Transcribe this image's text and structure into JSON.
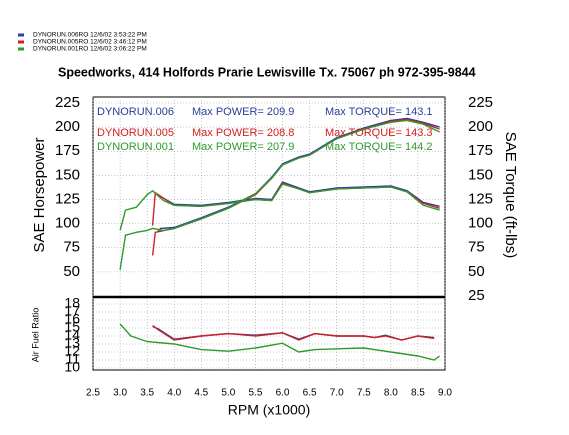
{
  "title": "Speedworks, 414 Holfords Prarie Lewisville Tx. 75067  ph 972-395-9844",
  "chart_data": [
    {
      "type": "line",
      "ylabel": "SAE Horsepower",
      "y2label": "SAE Torque (ft-lbs)",
      "xlim": [
        2.5,
        9.0
      ],
      "ylim": [
        25,
        225
      ],
      "yticks": [
        50,
        75,
        100,
        125,
        150,
        175,
        200,
        225
      ],
      "y2lim": [
        25,
        225
      ],
      "y2ticks": [
        25,
        50,
        75,
        100,
        125,
        150,
        175,
        200,
        225
      ],
      "grid": true,
      "series": [
        {
          "name": "DYNORUN.006RO 12/6/02 3:53:22 PM",
          "color": "#2a3f9e",
          "x": [
            3.7,
            3.75,
            4.0,
            4.5,
            5.0,
            5.5,
            5.8,
            6.0,
            6.3,
            6.5,
            7.0,
            7.5,
            8.0,
            8.3,
            8.6,
            8.9
          ],
          "values": [
            92,
            95,
            96,
            106,
            117,
            131,
            148,
            162,
            169,
            172,
            189,
            199,
            207,
            209,
            205,
            200
          ],
          "torque": [
            130,
            128,
            120,
            119,
            122,
            126,
            125,
            143,
            137,
            133,
            137,
            138,
            139,
            134,
            122,
            118
          ]
        },
        {
          "name": "DYNORUN.005RO 12/6/02 3:46:12 PM",
          "color": "#d02020",
          "x": [
            3.6,
            3.65,
            4.0,
            4.5,
            5.0,
            5.5,
            5.8,
            6.0,
            6.3,
            6.5,
            7.0,
            7.5,
            8.0,
            8.3,
            8.6,
            8.9
          ],
          "values": [
            67,
            91,
            95,
            105,
            116,
            130,
            147,
            161,
            168,
            171,
            188,
            198,
            206,
            208,
            204,
            198
          ],
          "torque": [
            98,
            132,
            119,
            118,
            121,
            125,
            124,
            142,
            136,
            132,
            136,
            137,
            138,
            133,
            121,
            116
          ]
        },
        {
          "name": "DYNORUN.001RO 12/6/02 3:06:22 PM",
          "color": "#2e9a2e",
          "x": [
            3.0,
            3.1,
            3.3,
            3.5,
            3.6,
            3.8,
            4.0,
            4.5,
            5.0,
            5.5,
            5.8,
            6.0,
            6.3,
            6.5,
            7.0,
            7.5,
            8.0,
            8.3,
            8.6,
            8.9
          ],
          "values": [
            52,
            88,
            91,
            93,
            95,
            93,
            95,
            105,
            116,
            131,
            147,
            161,
            168,
            171,
            188,
            198,
            205,
            207,
            203,
            195
          ],
          "torque": [
            93,
            114,
            117,
            130,
            134,
            124,
            119,
            118,
            121,
            125,
            124,
            141,
            136,
            132,
            136,
            137,
            138,
            133,
            119,
            114
          ]
        }
      ],
      "annotations": [
        {
          "color": "#2a3f9e",
          "texts": [
            "DYNORUN.006",
            "Max POWER= 209.9",
            "Max TORQUE= 143.1"
          ]
        },
        {
          "color": "#d02020",
          "texts": [
            "DYNORUN.005",
            "Max POWER= 208.8",
            "Max TORQUE= 143.3"
          ]
        },
        {
          "color": "#2e9a2e",
          "texts": [
            "DYNORUN.001",
            "Max POWER= 207.9",
            "Max TORQUE= 144.2"
          ]
        }
      ]
    },
    {
      "type": "line",
      "ylabel": "Air Fuel Ratio",
      "xlabel": "RPM (x1000)",
      "xlim": [
        2.5,
        9.0
      ],
      "ylim": [
        10,
        18
      ],
      "yticks": [
        10,
        11,
        12,
        13,
        14,
        15,
        16,
        17,
        18
      ],
      "xticks": [
        {
          "value": 2.5,
          "label": "2.5"
        },
        {
          "value": 3,
          "label": "3.0"
        },
        {
          "value": 3.5,
          "label": "3.5"
        },
        {
          "value": 4,
          "label": "4.0"
        },
        {
          "value": 4.5,
          "label": "4.5"
        },
        {
          "value": 5,
          "label": "5.0"
        },
        {
          "value": 5.5,
          "label": "5.5"
        },
        {
          "value": 6,
          "label": "6.0"
        },
        {
          "value": 6.5,
          "label": "6.5"
        },
        {
          "value": 7,
          "label": "7.0"
        },
        {
          "value": 7.5,
          "label": "7.5"
        },
        {
          "value": 8,
          "label": "8.0"
        },
        {
          "value": 8.5,
          "label": "8.5"
        },
        {
          "value": 9,
          "label": "9.0"
        }
      ],
      "grid": true,
      "series": [
        {
          "color": "#2a3f9e",
          "x": [
            3.6,
            3.7,
            4.0,
            4.5,
            5.0,
            5.5,
            6.0,
            6.3,
            6.6,
            7.0,
            7.5,
            7.7,
            7.9,
            8.2,
            8.5,
            8.8
          ],
          "values": [
            15.2,
            14.9,
            13.6,
            14.0,
            14.3,
            14.1,
            14.4,
            13.6,
            14.3,
            14.0,
            14.0,
            13.8,
            14.1,
            13.5,
            14.0,
            13.8
          ]
        },
        {
          "color": "#d02020",
          "x": [
            3.6,
            3.7,
            4.0,
            4.5,
            5.0,
            5.5,
            6.0,
            6.3,
            6.6,
            7.0,
            7.5,
            7.7,
            7.9,
            8.2,
            8.5,
            8.8
          ],
          "values": [
            15.3,
            14.8,
            13.5,
            14.0,
            14.3,
            14.0,
            14.4,
            13.5,
            14.3,
            14.0,
            14.0,
            13.8,
            14.0,
            13.5,
            14.0,
            13.7
          ]
        },
        {
          "color": "#2e9a2e",
          "x": [
            3.0,
            3.2,
            3.5,
            4.0,
            4.5,
            5.0,
            5.5,
            6.0,
            6.3,
            6.6,
            7.0,
            7.5,
            7.8,
            8.0,
            8.5,
            8.8,
            8.9
          ],
          "values": [
            15.5,
            14.0,
            13.3,
            13.0,
            12.3,
            12.1,
            12.5,
            13.1,
            12.0,
            12.3,
            12.4,
            12.5,
            12.2,
            12.0,
            11.5,
            11.0,
            11.5
          ]
        }
      ]
    }
  ]
}
